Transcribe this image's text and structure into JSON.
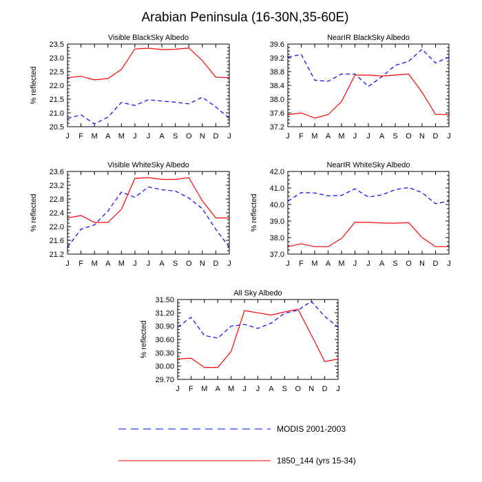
{
  "figure": {
    "title": "Arabian Peninsula (16-30N,35-60E)"
  },
  "legend": {
    "entries": [
      {
        "label": "MODIS 2001-2003",
        "color": "#0000ff",
        "style": "dashed"
      },
      {
        "label": "1850_144 (yrs 15-34)",
        "color": "#ff0000",
        "style": "solid"
      }
    ]
  },
  "chart_data": [
    {
      "type": "line",
      "title": "Visible BlackSky Albedo",
      "ylabel": "% reflected",
      "categories": [
        "J",
        "F",
        "M",
        "A",
        "M",
        "J",
        "J",
        "A",
        "S",
        "O",
        "N",
        "D",
        "J"
      ],
      "ylim": [
        20.5,
        23.5
      ],
      "yticks": [
        "20.5",
        "21.0",
        "21.5",
        "22.0",
        "22.5",
        "23.0",
        "23.5"
      ],
      "series": [
        {
          "name": "MODIS 2001-2003",
          "color": "#0000ff",
          "style": "dashed",
          "values": [
            20.8,
            20.93,
            20.6,
            20.85,
            21.38,
            21.27,
            21.48,
            21.43,
            21.39,
            21.33,
            21.57,
            21.22,
            20.8
          ]
        },
        {
          "name": "1850_144 (yrs 15-34)",
          "color": "#ff0000",
          "style": "solid",
          "values": [
            22.28,
            22.33,
            22.2,
            22.25,
            22.58,
            23.32,
            23.35,
            23.3,
            23.31,
            23.36,
            22.9,
            22.3,
            22.28
          ]
        }
      ]
    },
    {
      "type": "line",
      "title": "NearIR BlackSky Albedo",
      "ylabel": "",
      "categories": [
        "J",
        "F",
        "M",
        "A",
        "M",
        "J",
        "J",
        "A",
        "S",
        "O",
        "N",
        "D",
        "J"
      ],
      "ylim": [
        37.2,
        39.6
      ],
      "yticks": [
        "37.2",
        "37.6",
        "38.0",
        "38.4",
        "38.8",
        "39.2",
        "39.6"
      ],
      "series": [
        {
          "name": "MODIS 2001-2003",
          "color": "#0000ff",
          "style": "dashed",
          "values": [
            39.22,
            39.3,
            38.55,
            38.52,
            38.73,
            38.73,
            38.37,
            38.65,
            38.98,
            39.1,
            39.45,
            39.05,
            39.22
          ]
        },
        {
          "name": "1850_144 (yrs 15-34)",
          "color": "#ff0000",
          "style": "solid",
          "values": [
            37.55,
            37.6,
            37.45,
            37.55,
            37.93,
            38.7,
            38.7,
            38.67,
            38.7,
            38.73,
            38.2,
            37.56,
            37.55
          ]
        }
      ]
    },
    {
      "type": "line",
      "title": "Visible WhiteSky Albedo",
      "ylabel": "% reflected",
      "categories": [
        "J",
        "F",
        "M",
        "A",
        "M",
        "J",
        "J",
        "A",
        "S",
        "O",
        "N",
        "D",
        "J"
      ],
      "ylim": [
        21.2,
        23.6
      ],
      "yticks": [
        "21.2",
        "21.6",
        "22.0",
        "22.4",
        "22.8",
        "23.2",
        "23.6"
      ],
      "series": [
        {
          "name": "MODIS 2001-2003",
          "color": "#0000ff",
          "style": "dashed",
          "values": [
            21.4,
            21.92,
            22.05,
            22.45,
            23.0,
            22.85,
            23.15,
            23.07,
            23.03,
            22.83,
            22.52,
            21.92,
            21.4
          ]
        },
        {
          "name": "1850_144 (yrs 15-34)",
          "color": "#ff0000",
          "style": "solid",
          "values": [
            22.25,
            22.32,
            22.12,
            22.12,
            22.5,
            23.4,
            23.42,
            23.37,
            23.37,
            23.42,
            22.75,
            22.25,
            22.25
          ]
        }
      ]
    },
    {
      "type": "line",
      "title": "NearIR WhiteSky Albedo",
      "ylabel": "% reflected",
      "categories": [
        "J",
        "F",
        "M",
        "A",
        "M",
        "J",
        "J",
        "A",
        "S",
        "O",
        "N",
        "D",
        "J"
      ],
      "ylim": [
        37.0,
        42.0
      ],
      "yticks": [
        "37.0",
        "38.0",
        "39.0",
        "40.0",
        "41.0",
        "42.0"
      ],
      "series": [
        {
          "name": "MODIS 2001-2003",
          "color": "#0000ff",
          "style": "dashed",
          "values": [
            40.2,
            40.72,
            40.7,
            40.52,
            40.55,
            40.95,
            40.45,
            40.58,
            40.9,
            41.03,
            40.72,
            40.05,
            40.2
          ]
        },
        {
          "name": "1850_144 (yrs 15-34)",
          "color": "#ff0000",
          "style": "solid",
          "values": [
            37.45,
            37.62,
            37.45,
            37.45,
            37.95,
            38.92,
            38.92,
            38.88,
            38.87,
            38.9,
            38.0,
            37.45,
            37.45
          ]
        }
      ]
    },
    {
      "type": "line",
      "title": "All Sky Albedo",
      "ylabel": "% reflected",
      "categories": [
        "J",
        "F",
        "M",
        "A",
        "M",
        "J",
        "J",
        "A",
        "S",
        "O",
        "N",
        "D",
        "J"
      ],
      "ylim": [
        29.7,
        31.5
      ],
      "yticks": [
        "29.70",
        "30.00",
        "30.30",
        "30.60",
        "30.90",
        "31.20",
        "31.50"
      ],
      "series": [
        {
          "name": "MODIS 2001-2003",
          "color": "#0000ff",
          "style": "dashed",
          "values": [
            30.88,
            31.1,
            30.69,
            30.63,
            30.9,
            30.94,
            30.85,
            30.97,
            31.19,
            31.26,
            31.46,
            31.12,
            30.88
          ]
        },
        {
          "name": "1850_144 (yrs 15-34)",
          "color": "#ff0000",
          "style": "solid",
          "values": [
            30.16,
            30.18,
            29.97,
            29.97,
            30.33,
            31.25,
            31.2,
            31.15,
            31.22,
            31.28,
            30.7,
            30.1,
            30.16
          ]
        }
      ]
    }
  ]
}
